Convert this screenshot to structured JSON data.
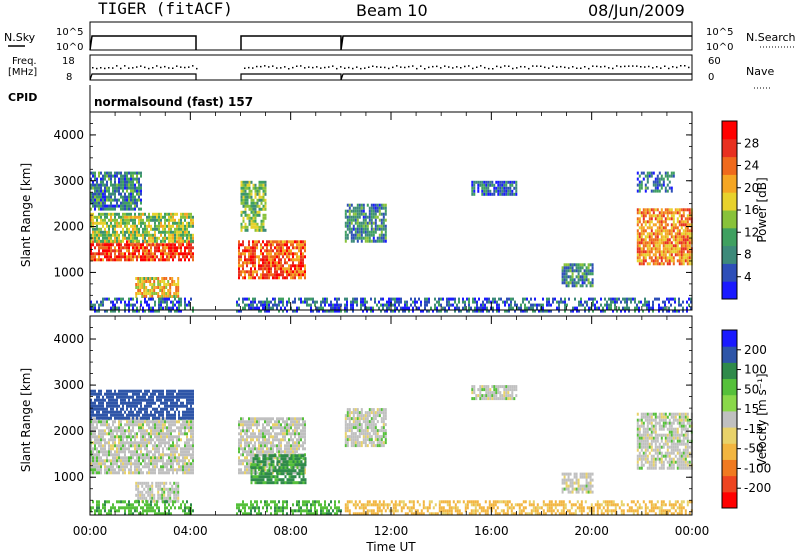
{
  "header": {
    "station": "TIGER (fitACF)",
    "beam": "Beam 10",
    "date": "08/Jun/2009"
  },
  "top_panels": {
    "nsky_label": "N.Sky",
    "nsearch_label": "N.Search",
    "nsky_ticks": [
      "10^5",
      "10^0"
    ],
    "nsearch_ticks": [
      "10^5",
      "10^0"
    ],
    "freq_label_1": "Freq.",
    "freq_label_2": "[MHz]",
    "freq_ticks": [
      "18",
      "8"
    ],
    "nave_label": "Nave",
    "nave_ticks": [
      "60",
      "0"
    ],
    "cpid_label": "CPID",
    "cpid_value": "normalsound (fast) 157"
  },
  "colors": {
    "power_scale": [
      "#1a1aff",
      "#2e4fb8",
      "#3d8a7a",
      "#3fa060",
      "#88c23a",
      "#e8d22c",
      "#f5a623",
      "#ef6a1c",
      "#e83020",
      "#ff0000"
    ],
    "velocity_scale": [
      "#1a1aff",
      "#2e55a8",
      "#2f8a4a",
      "#55c03a",
      "#8ad84a",
      "#c0c0c0",
      "#e8d26a",
      "#f2b540",
      "#f07a20",
      "#ee4420",
      "#ff0000"
    ]
  },
  "chart_data": [
    {
      "type": "heatmap",
      "title": "Power",
      "xlabel": "Time UT",
      "ylabel": "Slant Range [km]",
      "xlim": [
        "00:00",
        "00:00"
      ],
      "x_ticks": [
        "00:00",
        "04:00",
        "08:00",
        "12:00",
        "16:00",
        "20:00",
        "00:00"
      ],
      "ylim": [
        180,
        4500
      ],
      "y_ticks": [
        1000,
        2000,
        3000,
        4000
      ],
      "colorbar": {
        "label": "Power [dB]",
        "range": [
          0,
          32
        ],
        "ticks": [
          4,
          8,
          12,
          16,
          20,
          24,
          28
        ]
      },
      "data_gaps_hours": [
        [
          4.1,
          5.8
        ],
        [
          10.0,
          10.1
        ]
      ],
      "echo_regions": [
        {
          "t": [
            0.0,
            4.1
          ],
          "range_km": [
            1250,
            1700
          ],
          "power_db": 27
        },
        {
          "t": [
            0.0,
            4.1
          ],
          "range_km": [
            1700,
            2300
          ],
          "power_db": 15
        },
        {
          "t": [
            0.0,
            2.0
          ],
          "range_km": [
            2400,
            3200
          ],
          "power_db": 8
        },
        {
          "t": [
            1.8,
            3.5
          ],
          "range_km": [
            450,
            900
          ],
          "power_db": 18
        },
        {
          "t": [
            5.9,
            8.6
          ],
          "range_km": [
            900,
            1700
          ],
          "power_db": 25
        },
        {
          "t": [
            6.0,
            7.0
          ],
          "range_km": [
            1900,
            3000
          ],
          "power_db": 13
        },
        {
          "t": [
            10.0,
            11.8
          ],
          "range_km": [
            1700,
            2500
          ],
          "power_db": 9
        },
        {
          "t": [
            15.2,
            17.0
          ],
          "range_km": [
            2700,
            3000
          ],
          "power_db": 6
        },
        {
          "t": [
            18.8,
            20.0
          ],
          "range_km": [
            700,
            1200
          ],
          "power_db": 9
        },
        {
          "t": [
            21.8,
            24.0
          ],
          "range_km": [
            1200,
            2400
          ],
          "power_db": 22
        },
        {
          "t": [
            21.8,
            23.3
          ],
          "range_km": [
            2800,
            3200
          ],
          "power_db": 7
        },
        {
          "t": [
            0.0,
            24.0
          ],
          "range_km": [
            180,
            450
          ],
          "power_db": 6
        }
      ]
    },
    {
      "type": "heatmap",
      "title": "Velocity",
      "xlabel": "Time UT",
      "ylabel": "Slant Range [km]",
      "xlim": [
        "00:00",
        "00:00"
      ],
      "x_ticks": [
        "00:00",
        "04:00",
        "08:00",
        "12:00",
        "16:00",
        "20:00",
        "00:00"
      ],
      "ylim": [
        180,
        4500
      ],
      "y_ticks": [
        1000,
        2000,
        3000,
        4000
      ],
      "colorbar": {
        "label": "Velocity [m s-1]",
        "range": [
          -250,
          250
        ],
        "ticks": [
          200,
          100,
          50,
          15,
          -15,
          -50,
          -100,
          -200
        ]
      },
      "data_gaps_hours": [
        [
          4.1,
          5.8
        ],
        [
          10.0,
          10.1
        ]
      ],
      "echo_regions": [
        {
          "t": [
            0.0,
            4.1
          ],
          "range_km": [
            1100,
            2300
          ],
          "velocity": 0
        },
        {
          "t": [
            0.0,
            4.1
          ],
          "range_km": [
            2300,
            2900
          ],
          "velocity": 150
        },
        {
          "t": [
            1.8,
            3.5
          ],
          "range_km": [
            450,
            900
          ],
          "velocity": 0
        },
        {
          "t": [
            5.9,
            8.6
          ],
          "range_km": [
            1100,
            2300
          ],
          "velocity": 0
        },
        {
          "t": [
            6.4,
            8.6
          ],
          "range_km": [
            900,
            1500
          ],
          "velocity": 60
        },
        {
          "t": [
            10.0,
            11.8
          ],
          "range_km": [
            1700,
            2500
          ],
          "velocity": 0
        },
        {
          "t": [
            15.2,
            17.0
          ],
          "range_km": [
            2700,
            3000
          ],
          "velocity": 0
        },
        {
          "t": [
            18.8,
            20.0
          ],
          "range_km": [
            700,
            1100
          ],
          "velocity": 0
        },
        {
          "t": [
            21.8,
            24.0
          ],
          "range_km": [
            1200,
            2400
          ],
          "velocity": 0
        },
        {
          "t": [
            0.0,
            10.0
          ],
          "range_km": [
            180,
            500
          ],
          "velocity": 40
        },
        {
          "t": [
            10.0,
            24.0
          ],
          "range_km": [
            180,
            500
          ],
          "velocity": -60
        }
      ]
    }
  ],
  "labels": {
    "power_cb_label": "Power [dB]",
    "velocity_cb_label": "Velocity [m s⁻¹]",
    "x_axis_label": "Time UT",
    "y_axis_label": "Slant Range [km]",
    "power_ticks": [
      "28",
      "24",
      "20",
      "16",
      "12",
      "8",
      "4"
    ],
    "velocity_ticks": [
      "200",
      "100",
      "50",
      "15",
      "-15",
      "-50",
      "-100",
      "-200"
    ],
    "range_ticks": [
      "4000",
      "3000",
      "2000",
      "1000"
    ],
    "time_ticks": [
      "00:00",
      "04:00",
      "08:00",
      "12:00",
      "16:00",
      "20:00",
      "00:00"
    ]
  }
}
